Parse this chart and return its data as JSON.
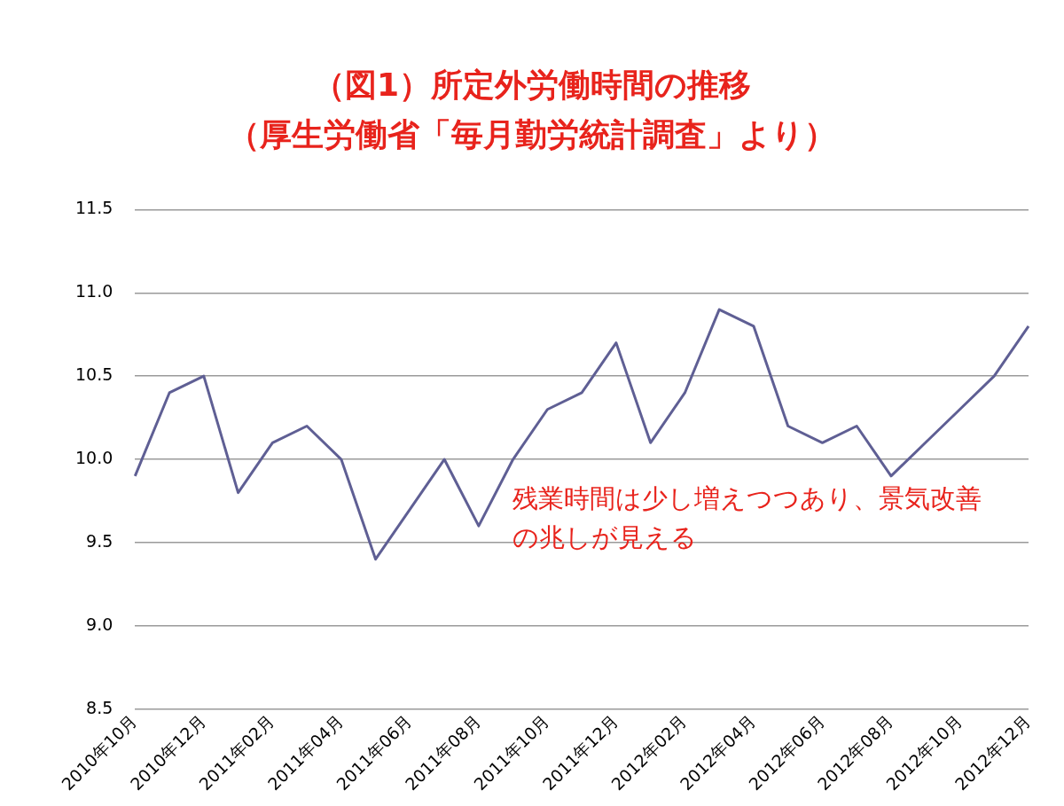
{
  "chart_data": {
    "type": "line",
    "title": "（図1）所定外労働時間の推移",
    "subtitle": "（厚生労働省「毎月勤労統計調査」より）",
    "categories": [
      "2010年10月",
      null,
      "2010年12月",
      null,
      "2011年02月",
      null,
      "2011年04月",
      null,
      "2011年06月",
      null,
      "2011年08月",
      null,
      "2011年10月",
      null,
      "2011年12月",
      null,
      "2012年02月",
      null,
      "2012年04月",
      null,
      "2012年06月",
      null,
      "2012年08月",
      null,
      "2012年10月",
      null,
      "2012年12月"
    ],
    "series": [
      {
        "color": "#5f5f94",
        "values": [
          9.9,
          10.4,
          10.5,
          9.8,
          10.1,
          10.2,
          10.0,
          9.4,
          9.7,
          10.0,
          9.6,
          10.0,
          10.3,
          10.4,
          10.7,
          10.1,
          10.4,
          10.9,
          10.8,
          10.2,
          10.1,
          10.2,
          9.9,
          10.1,
          10.3,
          10.5,
          10.8
        ]
      }
    ],
    "ylim": [
      8.5,
      11.5
    ],
    "yticks": [
      {
        "value": 8.5,
        "label": "8.5"
      },
      {
        "value": 9,
        "label": "9.0"
      },
      {
        "value": 9.5,
        "label": "9.5"
      },
      {
        "value": 10,
        "label": "10.0"
      },
      {
        "value": 10.5,
        "label": "10.5"
      },
      {
        "value": 11,
        "label": "11.0"
      },
      {
        "value": 11.5,
        "label": "11.5"
      }
    ],
    "grid": "y",
    "legend": false,
    "marker": "none",
    "line_style": "solid",
    "annotations": [
      "残業時間は少し増えつつあり、景気改善の兆しが見える"
    ]
  }
}
